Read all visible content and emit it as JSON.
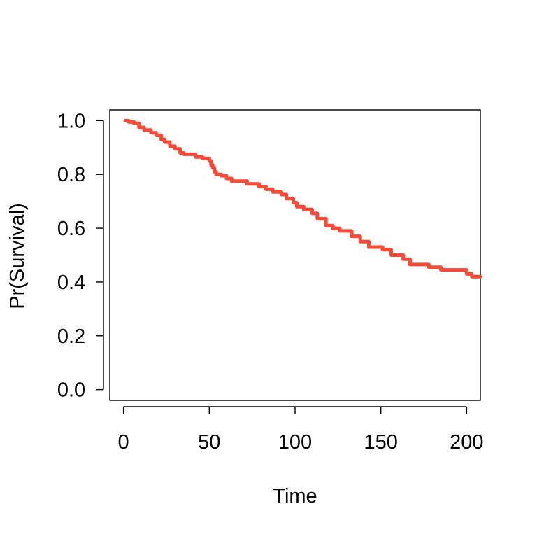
{
  "chart_data": {
    "type": "line",
    "title": "",
    "xlabel": "Time",
    "ylabel": "Pr(Survival)",
    "xlim": [
      -8,
      208
    ],
    "ylim": [
      -0.04,
      1.04
    ],
    "x_ticks": [
      0,
      50,
      100,
      150,
      200
    ],
    "y_ticks": [
      0.0,
      0.2,
      0.4,
      0.6,
      0.8,
      1.0
    ],
    "x_tick_labels": [
      "0",
      "50",
      "100",
      "150",
      "200"
    ],
    "y_tick_labels": [
      "0.0",
      "0.2",
      "0.4",
      "0.6",
      "0.8",
      "1.0"
    ],
    "grid": false,
    "line_color": "#f44a36",
    "series": [
      {
        "step": true,
        "x": [
          1,
          3,
          6,
          9,
          12,
          16,
          19,
          22,
          24,
          27,
          30,
          33,
          35,
          42,
          46,
          50,
          51,
          52,
          53,
          54,
          57,
          60,
          63,
          72,
          79,
          83,
          87,
          92,
          95,
          99,
          101,
          105,
          110,
          113,
          118,
          122,
          126,
          133,
          138,
          143,
          151,
          156,
          163,
          167,
          178,
          185,
          200,
          203,
          208
        ],
        "y": [
          1.0,
          0.995,
          0.99,
          0.975,
          0.965,
          0.955,
          0.945,
          0.93,
          0.92,
          0.905,
          0.895,
          0.88,
          0.875,
          0.865,
          0.86,
          0.85,
          0.835,
          0.825,
          0.81,
          0.8,
          0.795,
          0.785,
          0.775,
          0.765,
          0.755,
          0.745,
          0.735,
          0.725,
          0.71,
          0.695,
          0.68,
          0.67,
          0.655,
          0.635,
          0.61,
          0.6,
          0.59,
          0.57,
          0.55,
          0.53,
          0.52,
          0.5,
          0.485,
          0.465,
          0.455,
          0.445,
          0.43,
          0.42,
          0.42
        ]
      }
    ]
  }
}
